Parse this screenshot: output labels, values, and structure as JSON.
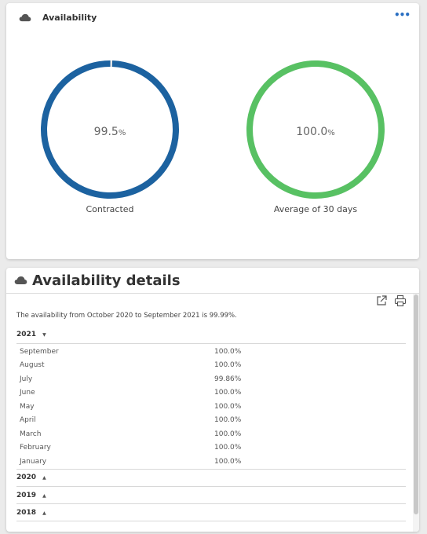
{
  "availability_card": {
    "title": "Availability",
    "more_icon": "more-horizontal-icon",
    "gauges": [
      {
        "value": "99.5",
        "unit": "%",
        "label": "Contracted",
        "fraction": 0.995,
        "color": "#1c62a0"
      },
      {
        "value": "100.0",
        "unit": "%",
        "label": "Average of 30 days",
        "fraction": 1.0,
        "color": "#58c163"
      }
    ]
  },
  "details_card": {
    "title": "Availability details",
    "icons": [
      "external-link-icon",
      "print-icon"
    ],
    "summary": "The availability from October 2020 to September 2021 is 99.99%.",
    "years": [
      {
        "year": "2021",
        "expanded": true,
        "months": [
          {
            "month": "September",
            "value": "100.0%"
          },
          {
            "month": "August",
            "value": "100.0%"
          },
          {
            "month": "July",
            "value": "99.86%"
          },
          {
            "month": "June",
            "value": "100.0%"
          },
          {
            "month": "May",
            "value": "100.0%"
          },
          {
            "month": "April",
            "value": "100.0%"
          },
          {
            "month": "March",
            "value": "100.0%"
          },
          {
            "month": "February",
            "value": "100.0%"
          },
          {
            "month": "January",
            "value": "100.0%"
          }
        ]
      },
      {
        "year": "2020",
        "expanded": false
      },
      {
        "year": "2019",
        "expanded": false
      },
      {
        "year": "2018",
        "expanded": false
      }
    ]
  }
}
